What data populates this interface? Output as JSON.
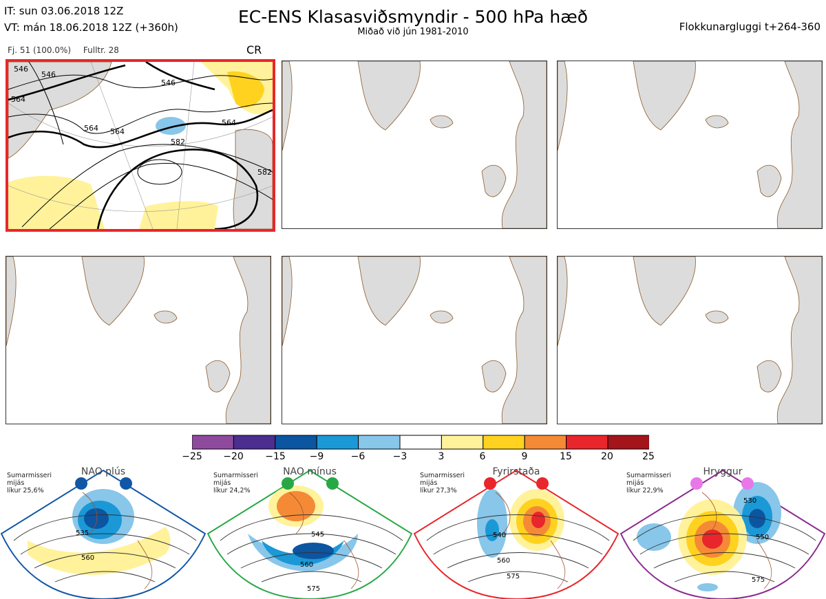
{
  "header": {
    "it_line": "IT: sun 03.06.2018 12Z",
    "vt_line": "VT: mán 18.06.2018 12Z  (+360h)",
    "title": "EC-ENS Klasasviðsmyndir - 500 hPa hæð",
    "subtitle": "Miðað við jún 1981-2010",
    "window": "Flokkunargluggi t+264-360"
  },
  "panel_info": {
    "members": "Fj. 51 (100.0%)",
    "representative": "Fulltr. 28",
    "regime_code": "CR"
  },
  "contour_labels": [
    "546",
    "546",
    "564",
    "564",
    "564",
    "546",
    "564",
    "582",
    "582"
  ],
  "colorbar": {
    "ticks": [
      "−25",
      "−20",
      "−15",
      "−9",
      "−6",
      "−3",
      "3",
      "6",
      "9",
      "15",
      "20",
      "25"
    ],
    "colors": [
      "#8e4b9e",
      "#4b2e8f",
      "#0c55a1",
      "#1b98d6",
      "#88c6ea",
      "#ffffff",
      "#fff29a",
      "#fed21f",
      "#f58a36",
      "#e8262b",
      "#a3141b"
    ]
  },
  "regimes": [
    {
      "name": "NAO plús",
      "season": "Sumarmisseri",
      "sub": "mijás",
      "prob": "líkur 25,6%",
      "color": "#1157a6",
      "labels": [
        "535",
        "560"
      ]
    },
    {
      "name": "NAO mínus",
      "season": "Sumarmisseri",
      "sub": "mijás",
      "prob": "líkur 24,2%",
      "color": "#27a845",
      "labels": [
        "545",
        "560",
        "575"
      ]
    },
    {
      "name": "Fyrirstaða",
      "season": "Sumarmisseri",
      "sub": "mijás",
      "prob": "líkur 27,3%",
      "color": "#e8262b",
      "labels": [
        "540",
        "560",
        "575"
      ]
    },
    {
      "name": "Hryggur",
      "season": "Sumarmisseri",
      "sub": "mijás",
      "prob": "líkur 22,9%",
      "color": "#8b2a8f",
      "labels": [
        "530",
        "550",
        "575"
      ]
    }
  ]
}
